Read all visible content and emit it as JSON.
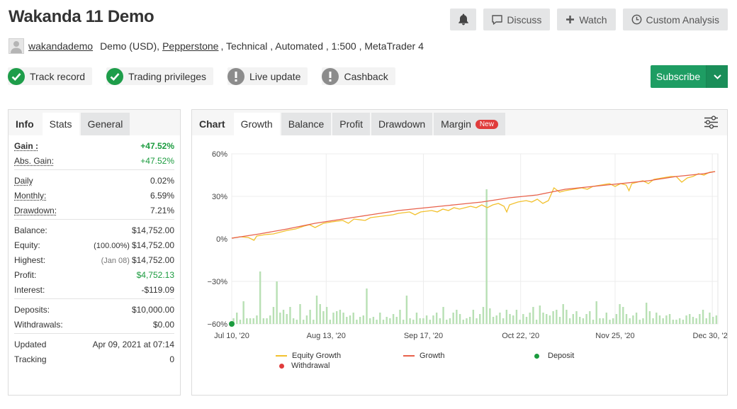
{
  "header": {
    "title": "Wakanda 11 Demo",
    "actions": {
      "discuss": "Discuss",
      "watch": "Watch",
      "custom_analysis": "Custom Analysis"
    }
  },
  "account": {
    "username": "wakandademo",
    "type": "Demo (USD),",
    "broker": "Pepperstone",
    "details": ", Technical , Automated , 1:500 , MetaTrader 4"
  },
  "badges": [
    {
      "label": "Track record",
      "status": "verified",
      "color": "#1e9d4a"
    },
    {
      "label": "Trading privileges",
      "status": "verified",
      "color": "#1e9d4a"
    },
    {
      "label": "Live update",
      "status": "warning",
      "color": "#8c8c8c"
    },
    {
      "label": "Cashback",
      "status": "warning",
      "color": "#8c8c8c"
    }
  ],
  "subscribe": {
    "label": "Subscribe",
    "color": "#1e9d63"
  },
  "left_tabs": {
    "info": "Info",
    "stats": "Stats",
    "general": "General"
  },
  "stats": {
    "gain": {
      "label": "Gain :",
      "value": "+47.52%"
    },
    "abs_gain": {
      "label": "Abs. Gain:",
      "value": "+47.52%"
    },
    "daily": {
      "label": "Daily",
      "value": "0.02%"
    },
    "monthly": {
      "label": "Monthly:",
      "value": "6.59%"
    },
    "drawdown": {
      "label": "Drawdown:",
      "value": "7.21%"
    },
    "balance": {
      "label": "Balance:",
      "value": "$14,752.00"
    },
    "equity": {
      "label": "Equity:",
      "note": "(100.00%)",
      "value": "$14,752.00"
    },
    "highest": {
      "label": "Highest:",
      "note": "(Jan 08)",
      "value": "$14,752.00"
    },
    "profit": {
      "label": "Profit:",
      "value": "$4,752.13"
    },
    "interest": {
      "label": "Interest:",
      "value": "-$119.09"
    },
    "deposits": {
      "label": "Deposits:",
      "value": "$10,000.00"
    },
    "withdrawals": {
      "label": "Withdrawals:",
      "value": "$0.00"
    },
    "updated": {
      "label": "Updated",
      "value": "Apr 09, 2021 at 07:14"
    },
    "tracking": {
      "label": "Tracking",
      "value": "0"
    }
  },
  "chart_tabs": {
    "chart": "Chart",
    "growth": "Growth",
    "balance": "Balance",
    "profit": "Profit",
    "drawdown": "Drawdown",
    "margin": "Margin",
    "new_badge": "New"
  },
  "chart_data": {
    "type": "line",
    "y_ticks": [
      "60%",
      "30%",
      "0%",
      "−30%",
      "−60%"
    ],
    "y_values": [
      60,
      30,
      0,
      -30,
      -60
    ],
    "ylim": [
      -60,
      60
    ],
    "x_ticks": [
      "Jul 10, '20",
      "Aug 13, '20",
      "Sep 17, '20",
      "Oct 22, '20",
      "Nov 25, '20",
      "Dec 30, '20"
    ],
    "x_tick_days": [
      0,
      34,
      69,
      104,
      138,
      173
    ],
    "xlim_days": [
      0,
      175
    ],
    "grid": true,
    "legend_position": "bottom",
    "series": [
      {
        "name": "Equity Growth",
        "color": "#f2c12e",
        "points": [
          [
            0,
            0.5
          ],
          [
            3,
            1.5
          ],
          [
            6,
            1
          ],
          [
            8,
            -1
          ],
          [
            9,
            2
          ],
          [
            12,
            3
          ],
          [
            15,
            3.5
          ],
          [
            18,
            5
          ],
          [
            20,
            6
          ],
          [
            23,
            7
          ],
          [
            26,
            9
          ],
          [
            28,
            10
          ],
          [
            30,
            8
          ],
          [
            33,
            11
          ],
          [
            36,
            12
          ],
          [
            40,
            13
          ],
          [
            42,
            11
          ],
          [
            44,
            14
          ],
          [
            48,
            13
          ],
          [
            50,
            15
          ],
          [
            54,
            16
          ],
          [
            58,
            17
          ],
          [
            60,
            18
          ],
          [
            64,
            19
          ],
          [
            66,
            17
          ],
          [
            68,
            19
          ],
          [
            72,
            20
          ],
          [
            74,
            19
          ],
          [
            76,
            21
          ],
          [
            78,
            20
          ],
          [
            80,
            22
          ],
          [
            82,
            21
          ],
          [
            84,
            22
          ],
          [
            86,
            23
          ],
          [
            88,
            22
          ],
          [
            90,
            24
          ],
          [
            92,
            22
          ],
          [
            94,
            24
          ],
          [
            96,
            25
          ],
          [
            98,
            23
          ],
          [
            99,
            19
          ],
          [
            100,
            24
          ],
          [
            103,
            26
          ],
          [
            106,
            27
          ],
          [
            108,
            26
          ],
          [
            110,
            28
          ],
          [
            112,
            25
          ],
          [
            114,
            27
          ],
          [
            116,
            36
          ],
          [
            118,
            33
          ],
          [
            120,
            34
          ],
          [
            123,
            35
          ],
          [
            126,
            36
          ],
          [
            128,
            35
          ],
          [
            130,
            37
          ],
          [
            133,
            38
          ],
          [
            136,
            39
          ],
          [
            138,
            37
          ],
          [
            140,
            39
          ],
          [
            142,
            38
          ],
          [
            143,
            34
          ],
          [
            144,
            39
          ],
          [
            146,
            40
          ],
          [
            148,
            41
          ],
          [
            150,
            39
          ],
          [
            152,
            42
          ],
          [
            155,
            43
          ],
          [
            158,
            44
          ],
          [
            160,
            44
          ],
          [
            162,
            40
          ],
          [
            164,
            43
          ],
          [
            166,
            44
          ],
          [
            168,
            46
          ],
          [
            170,
            45
          ],
          [
            172,
            47
          ],
          [
            174,
            47.5
          ]
        ]
      },
      {
        "name": "Growth",
        "color": "#e8614b",
        "points": [
          [
            0,
            0.5
          ],
          [
            10,
            3.5
          ],
          [
            20,
            7
          ],
          [
            30,
            11
          ],
          [
            40,
            14
          ],
          [
            50,
            17
          ],
          [
            60,
            20
          ],
          [
            70,
            22
          ],
          [
            80,
            24
          ],
          [
            90,
            26
          ],
          [
            100,
            29
          ],
          [
            110,
            31
          ],
          [
            115,
            33
          ],
          [
            120,
            35
          ],
          [
            130,
            37
          ],
          [
            140,
            39
          ],
          [
            150,
            41
          ],
          [
            160,
            44
          ],
          [
            170,
            46
          ],
          [
            174,
            47.5
          ]
        ]
      },
      {
        "name": "Deposit",
        "color": "#1a9b3e",
        "points": [
          [
            0,
            -60
          ]
        ]
      },
      {
        "name": "Withdrawal",
        "color": "#e03c3c",
        "points": []
      }
    ],
    "bars": {
      "color": "#b8e0b4",
      "values": [
        4,
        8,
        3,
        16,
        4,
        4,
        4,
        6,
        37,
        4,
        4,
        6,
        12,
        30,
        8,
        10,
        7,
        12,
        4,
        3,
        14,
        3,
        6,
        10,
        3,
        20,
        14,
        9,
        12,
        3,
        8,
        9,
        10,
        8,
        5,
        6,
        8,
        3,
        5,
        6,
        25,
        4,
        5,
        3,
        8,
        3,
        5,
        4,
        7,
        5,
        10,
        3,
        20,
        4,
        3,
        8,
        4,
        4,
        6,
        3,
        6,
        8,
        4,
        12,
        3,
        4,
        8,
        10,
        7,
        3,
        4,
        5,
        10,
        4,
        7,
        12,
        95,
        11,
        5,
        6,
        8,
        4,
        10,
        7,
        6,
        10,
        3,
        7,
        5,
        8,
        12,
        3,
        13,
        8,
        7,
        6,
        9,
        10,
        5,
        14,
        10,
        4,
        7,
        9,
        5,
        4,
        7,
        9,
        3,
        16,
        4,
        4,
        8,
        3,
        4,
        7,
        14,
        12,
        7,
        4,
        6,
        8,
        3,
        4,
        15,
        9,
        4,
        8,
        6,
        4,
        6,
        7,
        3,
        3,
        4,
        3,
        6,
        7,
        5,
        4,
        7,
        10,
        4,
        8,
        5,
        6
      ]
    }
  }
}
